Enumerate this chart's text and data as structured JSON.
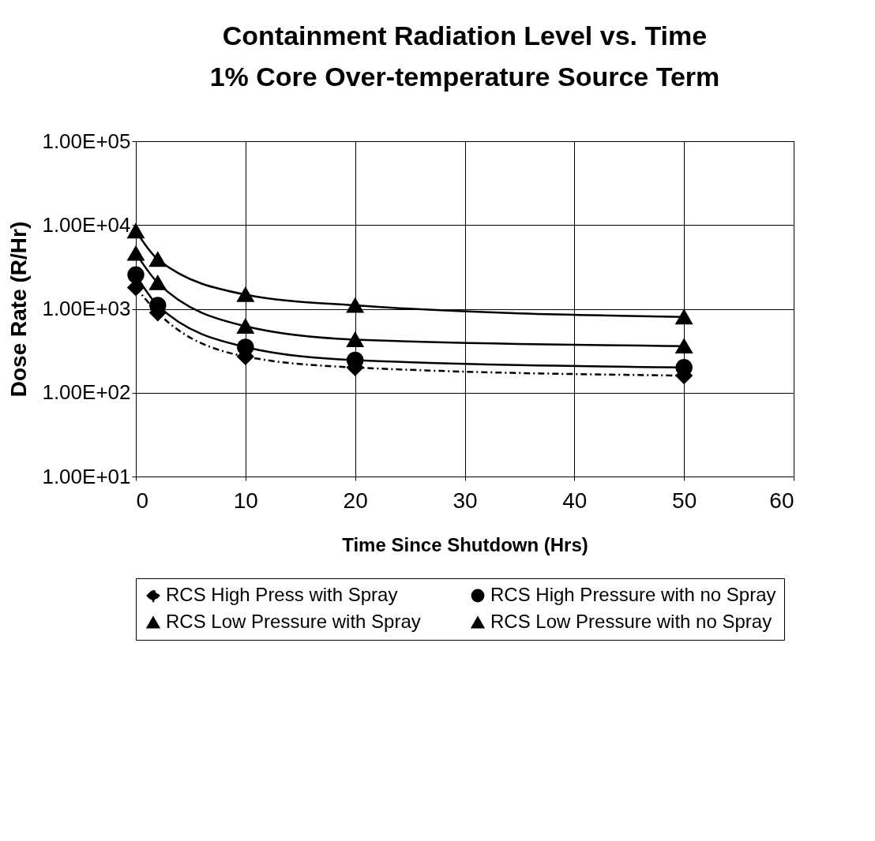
{
  "chart_data": {
    "type": "line",
    "title": "Containment Radiation Level vs. Time",
    "subtitle": "1% Core Over-temperature Source Term",
    "xlabel": "Time Since Shutdown (Hrs)",
    "ylabel": "Dose Rate (R/Hr)",
    "x": [
      0,
      2,
      10,
      20,
      50
    ],
    "series": [
      {
        "name": "RCS High Press with Spray",
        "color": "#000000",
        "marker": "diamond",
        "line_style": "dashed",
        "values": [
          1800,
          900,
          270,
          200,
          160
        ]
      },
      {
        "name": "RCS High Pressure with no Spray",
        "color": "#000000",
        "marker": "circle",
        "line_style": "solid",
        "values": [
          2550,
          1100,
          350,
          245,
          200
        ]
      },
      {
        "name": "RCS Low Pressure with Spray",
        "color": "#000000",
        "marker": "triangle",
        "line_style": "solid",
        "values": [
          4600,
          2050,
          620,
          430,
          360
        ]
      },
      {
        "name": "RCS Low Pressure with no Spray",
        "color": "#000000",
        "marker": "triangle",
        "line_style": "solid",
        "values": [
          8500,
          3900,
          1480,
          1100,
          800
        ]
      }
    ],
    "log": "y",
    "xlim": [
      0,
      60
    ],
    "xticks": [
      0,
      10,
      20,
      30,
      40,
      50,
      60
    ],
    "ylim": [
      10,
      100000
    ],
    "yticks": [
      {
        "value": 10,
        "label": "1.00E+01"
      },
      {
        "value": 100,
        "label": "1.00E+02"
      },
      {
        "value": 1000,
        "label": "1.00E+03"
      },
      {
        "value": 10000,
        "label": "1.00E+04"
      },
      {
        "value": 100000,
        "label": "1.00E+05"
      }
    ],
    "grid": true,
    "legend": "bottom"
  }
}
